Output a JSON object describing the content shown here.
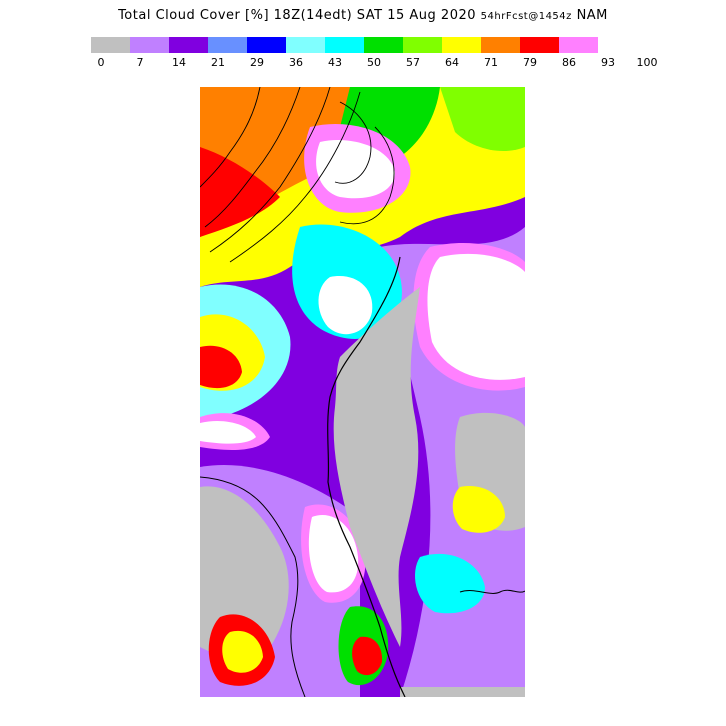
{
  "title": {
    "main": "Total Cloud Cover [%] 18Z(14edt) SAT 15 Aug 2020",
    "forecast": "54hrFcst@1454z",
    "model": "NAM"
  },
  "legend": {
    "levels": [
      "0",
      "7",
      "14",
      "21",
      "29",
      "36",
      "43",
      "50",
      "57",
      "64",
      "71",
      "79",
      "86",
      "93",
      "100"
    ],
    "colors": [
      "#c0c0c0",
      "#c080ff",
      "#8000e0",
      "#6890ff",
      "#0000ff",
      "#80ffff",
      "#00ffff",
      "#00e000",
      "#80ff00",
      "#ffff00",
      "#ff8000",
      "#ff0000",
      "#ff80ff"
    ]
  },
  "map": {
    "colors": {
      "clear": "#c0c0c0",
      "overcast": "#ffffff",
      "coastline": "#000000",
      "contours": "#000000"
    }
  }
}
